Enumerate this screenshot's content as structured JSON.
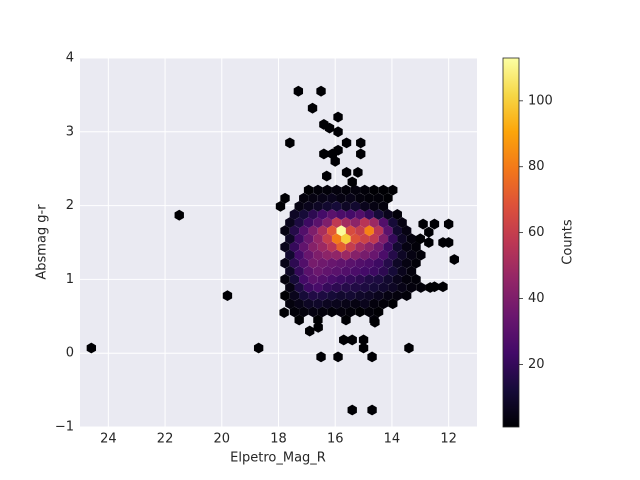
{
  "chart_data": {
    "type": "hexbin",
    "xlabel": "Elpetro_Mag_R",
    "ylabel": "Absmag g-r",
    "xlim": [
      25,
      11
    ],
    "ylim": [
      -1,
      4
    ],
    "xticks": [
      24,
      22,
      20,
      18,
      16,
      14,
      12
    ],
    "yticks": [
      {
        "value": -1,
        "label": "−1"
      },
      0,
      1,
      2,
      3,
      4
    ],
    "grid": true,
    "colormap": "inferno",
    "colorbar_label": "Counts",
    "clim": [
      1,
      113
    ],
    "cticks": [
      20,
      40,
      60,
      80,
      100
    ],
    "hexes": [
      [
        17.27,
        0.45,
        1
      ],
      [
        16.61,
        0.45,
        1
      ],
      [
        15.62,
        0.45,
        1
      ],
      [
        14.63,
        0.45,
        2
      ],
      [
        17.44,
        0.56,
        2
      ],
      [
        17.11,
        0.56,
        3
      ],
      [
        16.78,
        0.56,
        4
      ],
      [
        16.45,
        0.56,
        3
      ],
      [
        16.12,
        0.56,
        2
      ],
      [
        15.79,
        0.56,
        3
      ],
      [
        15.46,
        0.56,
        2
      ],
      [
        15.13,
        0.56,
        1
      ],
      [
        14.8,
        0.56,
        2
      ],
      [
        14.47,
        0.56,
        1
      ],
      [
        17.6,
        0.67,
        3
      ],
      [
        17.27,
        0.67,
        5
      ],
      [
        16.94,
        0.67,
        8
      ],
      [
        16.61,
        0.67,
        9
      ],
      [
        16.28,
        0.67,
        7
      ],
      [
        15.95,
        0.67,
        6
      ],
      [
        15.62,
        0.67,
        5
      ],
      [
        15.29,
        0.67,
        4
      ],
      [
        14.96,
        0.67,
        6
      ],
      [
        14.63,
        0.67,
        3
      ],
      [
        14.3,
        0.67,
        2
      ],
      [
        13.97,
        0.67,
        1
      ],
      [
        17.77,
        0.78,
        1
      ],
      [
        17.44,
        0.78,
        6
      ],
      [
        17.11,
        0.78,
        12
      ],
      [
        16.78,
        0.78,
        15
      ],
      [
        16.45,
        0.78,
        14
      ],
      [
        16.12,
        0.78,
        12
      ],
      [
        15.79,
        0.78,
        10
      ],
      [
        15.46,
        0.78,
        11
      ],
      [
        15.13,
        0.78,
        9
      ],
      [
        14.8,
        0.78,
        8
      ],
      [
        14.47,
        0.78,
        6
      ],
      [
        14.14,
        0.78,
        4
      ],
      [
        13.81,
        0.78,
        3
      ],
      [
        13.48,
        0.78,
        2
      ],
      [
        17.6,
        0.89,
        4
      ],
      [
        17.27,
        0.89,
        14
      ],
      [
        16.94,
        0.89,
        22
      ],
      [
        16.61,
        0.89,
        25
      ],
      [
        16.28,
        0.89,
        20
      ],
      [
        15.95,
        0.89,
        18
      ],
      [
        15.62,
        0.89,
        16
      ],
      [
        15.29,
        0.89,
        15
      ],
      [
        14.96,
        0.89,
        14
      ],
      [
        14.63,
        0.89,
        12
      ],
      [
        14.3,
        0.89,
        10
      ],
      [
        13.97,
        0.89,
        8
      ],
      [
        13.64,
        0.89,
        5
      ],
      [
        13.31,
        0.89,
        3
      ],
      [
        12.98,
        0.89,
        2
      ],
      [
        12.65,
        0.89,
        1
      ],
      [
        17.77,
        1.0,
        3
      ],
      [
        17.44,
        1.0,
        12
      ],
      [
        17.11,
        1.0,
        24
      ],
      [
        16.78,
        1.0,
        30
      ],
      [
        16.45,
        1.0,
        28
      ],
      [
        16.12,
        1.0,
        25
      ],
      [
        15.79,
        1.0,
        22
      ],
      [
        15.46,
        1.0,
        20
      ],
      [
        15.13,
        1.0,
        18
      ],
      [
        14.8,
        1.0,
        15
      ],
      [
        14.47,
        1.0,
        14
      ],
      [
        14.14,
        1.0,
        10
      ],
      [
        13.81,
        1.0,
        6
      ],
      [
        13.48,
        1.0,
        3
      ],
      [
        13.15,
        1.0,
        2
      ],
      [
        17.6,
        1.11,
        8
      ],
      [
        17.27,
        1.11,
        20
      ],
      [
        16.94,
        1.11,
        30
      ],
      [
        16.61,
        1.11,
        35
      ],
      [
        16.28,
        1.11,
        32
      ],
      [
        15.95,
        1.11,
        30
      ],
      [
        15.62,
        1.11,
        28
      ],
      [
        15.29,
        1.11,
        26
      ],
      [
        14.96,
        1.11,
        24
      ],
      [
        14.63,
        1.11,
        22
      ],
      [
        14.3,
        1.11,
        18
      ],
      [
        13.97,
        1.11,
        12
      ],
      [
        13.64,
        1.11,
        6
      ],
      [
        13.31,
        1.11,
        3
      ],
      [
        17.77,
        1.22,
        5
      ],
      [
        17.44,
        1.22,
        18
      ],
      [
        17.11,
        1.22,
        28
      ],
      [
        16.78,
        1.22,
        38
      ],
      [
        16.45,
        1.22,
        36
      ],
      [
        16.12,
        1.22,
        34
      ],
      [
        15.79,
        1.22,
        32
      ],
      [
        15.46,
        1.22,
        30
      ],
      [
        15.13,
        1.22,
        28
      ],
      [
        14.8,
        1.22,
        26
      ],
      [
        14.47,
        1.22,
        22
      ],
      [
        14.14,
        1.22,
        16
      ],
      [
        13.81,
        1.22,
        8
      ],
      [
        13.48,
        1.22,
        4
      ],
      [
        13.15,
        1.22,
        2
      ],
      [
        17.6,
        1.33,
        10
      ],
      [
        17.27,
        1.33,
        24
      ],
      [
        16.94,
        1.33,
        34
      ],
      [
        16.61,
        1.33,
        40
      ],
      [
        16.28,
        1.33,
        44
      ],
      [
        15.95,
        1.33,
        45
      ],
      [
        15.62,
        1.33,
        48
      ],
      [
        15.29,
        1.33,
        42
      ],
      [
        14.96,
        1.33,
        38
      ],
      [
        14.63,
        1.33,
        34
      ],
      [
        14.3,
        1.33,
        26
      ],
      [
        13.97,
        1.33,
        16
      ],
      [
        13.64,
        1.33,
        8
      ],
      [
        13.31,
        1.33,
        4
      ],
      [
        12.98,
        1.33,
        2
      ],
      [
        17.77,
        1.44,
        6
      ],
      [
        17.44,
        1.44,
        20
      ],
      [
        17.11,
        1.44,
        32
      ],
      [
        16.78,
        1.44,
        42
      ],
      [
        16.45,
        1.44,
        48
      ],
      [
        16.12,
        1.44,
        56
      ],
      [
        15.79,
        1.44,
        72
      ],
      [
        15.46,
        1.44,
        60
      ],
      [
        15.13,
        1.44,
        50
      ],
      [
        14.8,
        1.44,
        44
      ],
      [
        14.47,
        1.44,
        36
      ],
      [
        14.14,
        1.44,
        22
      ],
      [
        13.81,
        1.44,
        10
      ],
      [
        13.48,
        1.44,
        4
      ],
      [
        13.15,
        1.44,
        2
      ],
      [
        17.6,
        1.55,
        8
      ],
      [
        17.27,
        1.55,
        22
      ],
      [
        16.94,
        1.55,
        34
      ],
      [
        16.61,
        1.55,
        46
      ],
      [
        16.28,
        1.55,
        60
      ],
      [
        15.95,
        1.55,
        80
      ],
      [
        15.62,
        1.55,
        100
      ],
      [
        15.29,
        1.55,
        68
      ],
      [
        14.96,
        1.55,
        62
      ],
      [
        14.63,
        1.55,
        58
      ],
      [
        14.3,
        1.55,
        40
      ],
      [
        13.97,
        1.55,
        20
      ],
      [
        13.64,
        1.55,
        8
      ],
      [
        13.31,
        1.55,
        3
      ],
      [
        17.77,
        1.66,
        4
      ],
      [
        17.44,
        1.66,
        16
      ],
      [
        17.11,
        1.66,
        28
      ],
      [
        16.78,
        1.66,
        40
      ],
      [
        16.45,
        1.66,
        52
      ],
      [
        16.12,
        1.66,
        70
      ],
      [
        15.79,
        1.66,
        112
      ],
      [
        15.46,
        1.66,
        66
      ],
      [
        15.13,
        1.66,
        60
      ],
      [
        14.8,
        1.66,
        82
      ],
      [
        14.47,
        1.66,
        56
      ],
      [
        14.14,
        1.66,
        30
      ],
      [
        13.81,
        1.66,
        10
      ],
      [
        13.48,
        1.66,
        4
      ],
      [
        17.6,
        1.77,
        6
      ],
      [
        17.27,
        1.77,
        14
      ],
      [
        16.94,
        1.77,
        22
      ],
      [
        16.61,
        1.77,
        30
      ],
      [
        16.28,
        1.77,
        40
      ],
      [
        15.95,
        1.77,
        58
      ],
      [
        15.62,
        1.77,
        50
      ],
      [
        15.29,
        1.77,
        44
      ],
      [
        14.96,
        1.77,
        56
      ],
      [
        14.63,
        1.77,
        48
      ],
      [
        14.3,
        1.77,
        28
      ],
      [
        13.97,
        1.77,
        12
      ],
      [
        13.64,
        1.77,
        4
      ],
      [
        17.44,
        1.88,
        8
      ],
      [
        17.11,
        1.88,
        12
      ],
      [
        16.78,
        1.88,
        18
      ],
      [
        16.45,
        1.88,
        24
      ],
      [
        16.12,
        1.88,
        30
      ],
      [
        15.79,
        1.88,
        26
      ],
      [
        15.46,
        1.88,
        24
      ],
      [
        15.13,
        1.88,
        28
      ],
      [
        14.8,
        1.88,
        20
      ],
      [
        14.47,
        1.88,
        12
      ],
      [
        14.14,
        1.88,
        6
      ],
      [
        13.81,
        1.88,
        2
      ],
      [
        17.93,
        1.99,
        1
      ],
      [
        17.27,
        1.99,
        4
      ],
      [
        16.94,
        1.99,
        6
      ],
      [
        16.61,
        1.99,
        8
      ],
      [
        16.28,
        1.99,
        10
      ],
      [
        15.95,
        1.99,
        12
      ],
      [
        15.62,
        1.99,
        8
      ],
      [
        15.29,
        1.99,
        10
      ],
      [
        14.96,
        1.99,
        6
      ],
      [
        14.63,
        1.99,
        4
      ],
      [
        14.3,
        1.99,
        3
      ],
      [
        17.77,
        2.1,
        1
      ],
      [
        17.11,
        2.1,
        3
      ],
      [
        16.78,
        2.1,
        4
      ],
      [
        16.45,
        2.1,
        5
      ],
      [
        16.12,
        2.1,
        6
      ],
      [
        15.79,
        2.1,
        4
      ],
      [
        15.46,
        2.1,
        5
      ],
      [
        15.13,
        2.1,
        3
      ],
      [
        14.8,
        2.1,
        2
      ],
      [
        14.47,
        2.1,
        2
      ],
      [
        14.14,
        2.1,
        1
      ],
      [
        16.94,
        2.21,
        1
      ],
      [
        16.61,
        2.21,
        2
      ],
      [
        16.28,
        2.21,
        2
      ],
      [
        15.95,
        2.21,
        3
      ],
      [
        15.62,
        2.21,
        2
      ],
      [
        15.29,
        2.21,
        3
      ],
      [
        14.96,
        2.21,
        2
      ],
      [
        14.63,
        2.21,
        1
      ],
      [
        14.3,
        2.21,
        1
      ],
      [
        13.97,
        2.21,
        1
      ],
      [
        16.3,
        2.4,
        1
      ],
      [
        15.6,
        2.45,
        1
      ],
      [
        15.2,
        2.45,
        1
      ],
      [
        16.0,
        2.6,
        1
      ],
      [
        15.4,
        2.32,
        1
      ],
      [
        16.1,
        2.7,
        1
      ],
      [
        15.6,
        2.85,
        1
      ],
      [
        15.9,
        2.75,
        1
      ],
      [
        15.1,
        2.7,
        1
      ],
      [
        15.1,
        2.85,
        1
      ],
      [
        16.4,
        2.7,
        1
      ],
      [
        16.2,
        3.05,
        1
      ],
      [
        15.9,
        3.0,
        1
      ],
      [
        16.4,
        3.1,
        1
      ],
      [
        15.9,
        3.2,
        1
      ],
      [
        16.8,
        3.32,
        1
      ],
      [
        17.3,
        3.55,
        1
      ],
      [
        16.5,
        3.55,
        1
      ],
      [
        17.6,
        2.85,
        1
      ],
      [
        24.6,
        0.07,
        1
      ],
      [
        21.5,
        1.87,
        1
      ],
      [
        19.8,
        0.78,
        1
      ],
      [
        18.7,
        0.07,
        1
      ],
      [
        13.4,
        0.07,
        1
      ],
      [
        16.5,
        -0.05,
        1
      ],
      [
        15.9,
        -0.05,
        1
      ],
      [
        14.7,
        -0.05,
        1
      ],
      [
        15.4,
        -0.77,
        1
      ],
      [
        14.7,
        -0.77,
        1
      ],
      [
        15.0,
        0.18,
        1
      ],
      [
        15.4,
        0.18,
        1
      ],
      [
        15.7,
        0.18,
        1
      ],
      [
        15.0,
        0.07,
        1
      ],
      [
        16.9,
        0.3,
        1
      ],
      [
        17.8,
        0.55,
        1
      ],
      [
        16.6,
        0.35,
        1
      ],
      [
        14.6,
        0.42,
        1
      ],
      [
        12.2,
        0.9,
        1
      ],
      [
        12.5,
        0.9,
        1
      ],
      [
        12.0,
        1.75,
        1
      ],
      [
        11.8,
        1.27,
        1
      ],
      [
        12.5,
        1.75,
        1
      ],
      [
        12.7,
        1.64,
        1
      ],
      [
        12.0,
        1.5,
        1
      ],
      [
        12.2,
        1.5,
        1
      ],
      [
        12.9,
        1.75,
        1
      ],
      [
        12.7,
        1.5,
        1
      ],
      [
        13.0,
        1.55,
        1
      ]
    ]
  }
}
